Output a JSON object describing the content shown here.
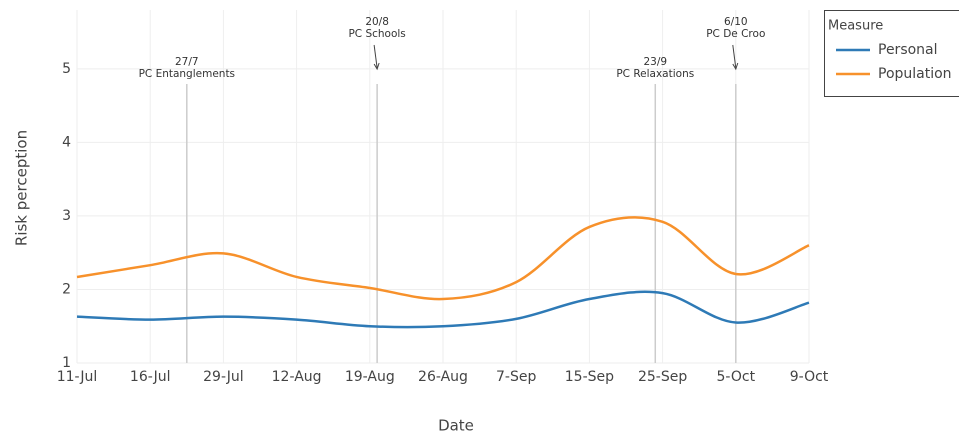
{
  "chart_data": {
    "type": "line",
    "x_label": "Date",
    "y_label": "Risk perception",
    "categories": [
      "11-Jul",
      "16-Jul",
      "29-Jul",
      "12-Aug",
      "19-Aug",
      "26-Aug",
      "7-Sep",
      "15-Sep",
      "25-Sep",
      "5-Oct",
      "9-Oct"
    ],
    "series": [
      {
        "name": "Personal",
        "color": "#2e7ab6",
        "values": [
          1.63,
          1.59,
          1.63,
          1.59,
          1.5,
          1.5,
          1.6,
          1.87,
          1.95,
          1.55,
          1.82
        ]
      },
      {
        "name": "Population",
        "color": "#f7912b",
        "values": [
          2.17,
          2.33,
          2.49,
          2.17,
          2.02,
          1.87,
          2.1,
          2.85,
          2.92,
          2.21,
          2.6
        ]
      }
    ],
    "ylim": [
      1,
      5.8
    ],
    "yticks": [
      1,
      2,
      3,
      4,
      5
    ],
    "grid": true,
    "legend_title": "Measure",
    "legend_position": "top-right",
    "events": [
      {
        "x": 1.5,
        "date": "27/7",
        "label": "PC Entanglements",
        "arrow": false
      },
      {
        "x": 4.1,
        "date": "20/8",
        "label": "PC Schools",
        "arrow": true
      },
      {
        "x": 7.9,
        "date": "23/9",
        "label": "PC Relaxations",
        "arrow": false
      },
      {
        "x": 9.0,
        "date": "6/10",
        "label": "PC De Croo",
        "arrow": true
      }
    ]
  }
}
